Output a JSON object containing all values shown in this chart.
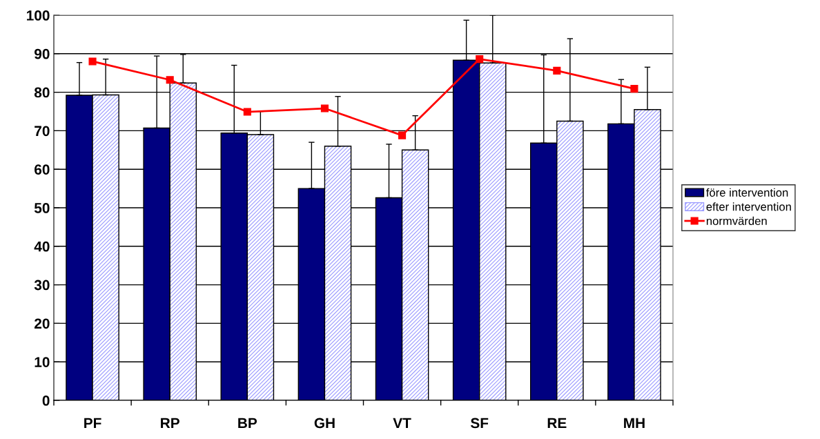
{
  "chart_data": {
    "type": "bar",
    "categories": [
      "PF",
      "RP",
      "BP",
      "GH",
      "VT",
      "SF",
      "RE",
      "MH"
    ],
    "series": [
      {
        "name": "före intervention",
        "color": "#000080",
        "values": [
          79.2,
          70.7,
          69.4,
          55,
          52.6,
          88.3,
          66.8,
          71.8
        ],
        "errors": [
          [
            79.2,
            87.7
          ],
          [
            70.7,
            89.4
          ],
          [
            69.4,
            87
          ],
          [
            55,
            67
          ],
          [
            52.6,
            66.5
          ],
          [
            88.3,
            98.7
          ],
          [
            66.8,
            89.7
          ],
          [
            71.8,
            83.3
          ]
        ]
      },
      {
        "name": "efter intervention",
        "color": "#9999ff",
        "values": [
          79.3,
          82.4,
          69,
          66,
          65,
          87.6,
          72.5,
          75.5
        ],
        "errors": [
          [
            79.3,
            88.6
          ],
          [
            82.4,
            89.8
          ],
          [
            69,
            75
          ],
          [
            66,
            78.9
          ],
          [
            65,
            73.9
          ],
          [
            87.6,
            100
          ],
          [
            72.5,
            93.9
          ],
          [
            75.5,
            86.5
          ]
        ]
      },
      {
        "name": "normvärden",
        "type": "line",
        "color": "#ff0000",
        "marker": "square",
        "values": [
          88,
          83.2,
          74.9,
          75.8,
          68.8,
          88.6,
          85.6,
          80.9
        ]
      }
    ],
    "ylim": [
      0,
      100
    ],
    "yticks": [
      0,
      10,
      20,
      30,
      40,
      50,
      60,
      70,
      80,
      90,
      100
    ],
    "grid": "y",
    "legend": "right"
  }
}
